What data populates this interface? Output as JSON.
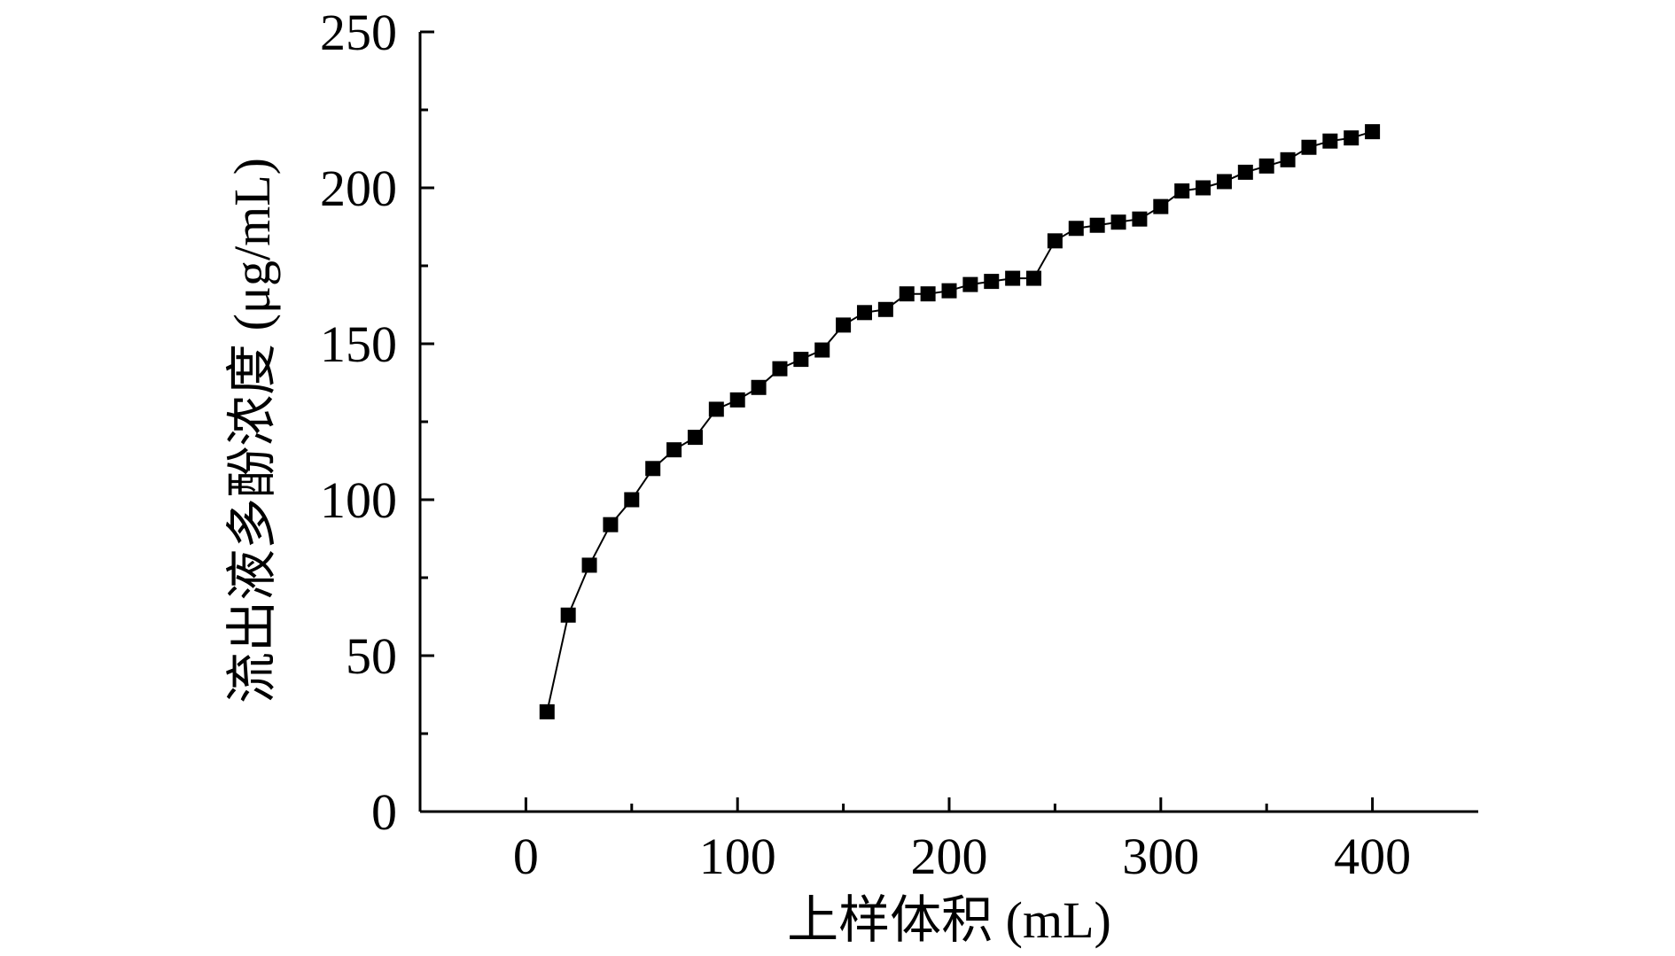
{
  "chart_data": {
    "type": "line",
    "markers": "square",
    "xlabel": "上样体积 (mL)",
    "ylabel": "流出液多酚浓度 (μg/mL)",
    "xlim": [
      -50,
      450
    ],
    "ylim": [
      0,
      250
    ],
    "xticks": [
      0,
      100,
      200,
      300,
      400
    ],
    "yticks": [
      0,
      50,
      100,
      150,
      200,
      250
    ],
    "xticks_minor": [
      50,
      150,
      250,
      350
    ],
    "yticks_minor": [
      25,
      75,
      125,
      175,
      225
    ],
    "grid": false,
    "legend": "none",
    "colors": {
      "line": "#000000",
      "marker": "#000000",
      "axis": "#000000"
    },
    "series": [
      {
        "x": [
          10,
          20,
          30,
          40,
          50,
          60,
          70,
          80,
          90,
          100,
          110,
          120,
          130,
          140,
          150,
          160,
          170,
          180,
          190,
          200,
          210,
          220,
          230,
          240,
          250,
          260,
          270,
          280,
          290,
          300,
          310,
          320,
          330,
          340,
          350,
          360,
          370,
          380,
          390,
          400
        ],
        "values": [
          32,
          63,
          79,
          92,
          100,
          110,
          116,
          120,
          129,
          132,
          136,
          142,
          145,
          148,
          156,
          160,
          161,
          166,
          166,
          167,
          169,
          170,
          171,
          171,
          183,
          187,
          188,
          189,
          190,
          194,
          199,
          200,
          202,
          205,
          207,
          209,
          213,
          215,
          216,
          218
        ]
      }
    ]
  }
}
